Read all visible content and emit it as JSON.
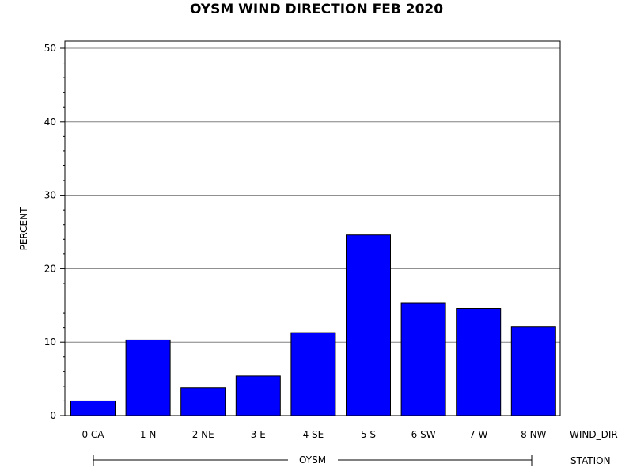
{
  "chart_data": {
    "type": "bar",
    "title": "OYSM WIND DIRECTION FEB 2020",
    "ylabel": "PERCENT",
    "xlabel": "WIND_DIR",
    "group_axis_label": "STATION",
    "group_label": "OYSM",
    "categories": [
      "0 CA",
      "1 N",
      "2 NE",
      "3 E",
      "4 SE",
      "5 S",
      "6 SW",
      "7 W",
      "8 NW"
    ],
    "values": [
      2.0,
      10.3,
      3.8,
      5.4,
      11.3,
      24.6,
      15.3,
      14.6,
      12.1
    ],
    "ylim": [
      0,
      50
    ],
    "yticks": [
      0,
      10,
      20,
      30,
      40,
      50
    ],
    "grid": true,
    "bar_color": "#0000ff",
    "legend": "none"
  }
}
